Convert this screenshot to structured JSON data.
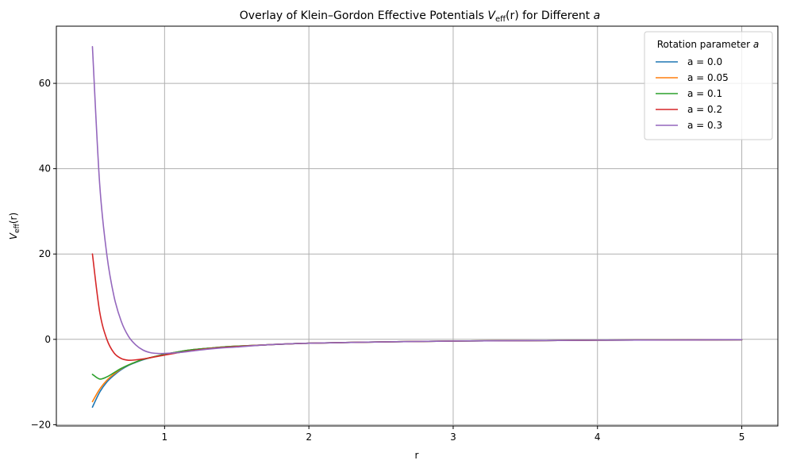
{
  "chart_data": {
    "type": "line",
    "title": "Overlay of Klein–Gordon Effective Potentials V_eff(r) for Different a",
    "title_parts": {
      "prefix": "Overlay of Klein–Gordon Effective Potentials ",
      "v": "V",
      "eff": "eff",
      "r_expr": "(r)",
      "middle": " for Different ",
      "a": "a"
    },
    "xlabel": "r",
    "ylabel": "V_eff(r)",
    "ylabel_parts": {
      "v": "V",
      "eff": "eff",
      "r_expr": "(r)"
    },
    "xlim": [
      0.25,
      5.25
    ],
    "ylim": [
      -20.3,
      73.4
    ],
    "xticks": [
      1,
      2,
      3,
      4,
      5
    ],
    "xtick_labels": [
      "1",
      "2",
      "3",
      "4",
      "5"
    ],
    "yticks": [
      -20,
      0,
      20,
      40,
      60
    ],
    "ytick_labels": [
      "−20",
      "0",
      "20",
      "40",
      "60"
    ],
    "grid": true,
    "legend_title": "Rotation parameter a",
    "legend_title_parts": {
      "text": "Rotation parameter ",
      "a": "a"
    },
    "legend_position": "top-right",
    "x": [
      0.5,
      0.55,
      0.6,
      0.65,
      0.7,
      0.75,
      0.8,
      0.85,
      0.9,
      0.95,
      1.0,
      1.1,
      1.2,
      1.3,
      1.4,
      1.5,
      1.7,
      2.0,
      2.5,
      3.0,
      3.5,
      4.0,
      4.5,
      5.0
    ],
    "series": [
      {
        "name": "a = 0.0",
        "color": "#1f77b4",
        "values": [
          -15.9,
          -12.4,
          -10.0,
          -8.4,
          -7.1,
          -6.1,
          -5.4,
          -4.8,
          -4.3,
          -3.9,
          -3.5,
          -2.9,
          -2.4,
          -2.1,
          -1.8,
          -1.6,
          -1.3,
          -0.9,
          -0.6,
          -0.4,
          -0.3,
          -0.2,
          -0.15,
          -0.1
        ]
      },
      {
        "name": "a = 0.05",
        "color": "#ff7f0e",
        "values": [
          -14.6,
          -11.7,
          -9.6,
          -8.1,
          -6.9,
          -6.0,
          -5.3,
          -4.7,
          -4.3,
          -3.9,
          -3.5,
          -2.9,
          -2.4,
          -2.1,
          -1.8,
          -1.6,
          -1.3,
          -0.9,
          -0.6,
          -0.4,
          -0.3,
          -0.2,
          -0.15,
          -0.1
        ]
      },
      {
        "name": "a = 0.1",
        "color": "#2ca02c",
        "values": [
          -8.2,
          -9.3,
          -8.8,
          -7.8,
          -6.8,
          -6.0,
          -5.3,
          -4.7,
          -4.3,
          -3.9,
          -3.5,
          -2.9,
          -2.4,
          -2.1,
          -1.8,
          -1.6,
          -1.3,
          -0.9,
          -0.6,
          -0.4,
          -0.3,
          -0.2,
          -0.15,
          -0.1
        ]
      },
      {
        "name": "a = 0.2",
        "color": "#d62728",
        "values": [
          20.0,
          6.5,
          0.0,
          -3.2,
          -4.5,
          -4.9,
          -4.8,
          -4.6,
          -4.3,
          -4.0,
          -3.7,
          -3.1,
          -2.6,
          -2.2,
          -1.9,
          -1.7,
          -1.3,
          -0.9,
          -0.6,
          -0.4,
          -0.3,
          -0.2,
          -0.15,
          -0.1
        ]
      },
      {
        "name": "a = 0.3",
        "color": "#9467bd",
        "values": [
          68.6,
          36.5,
          19.8,
          10.0,
          4.2,
          0.7,
          -1.3,
          -2.5,
          -3.1,
          -3.3,
          -3.3,
          -3.1,
          -2.7,
          -2.3,
          -2.0,
          -1.8,
          -1.3,
          -0.9,
          -0.6,
          -0.4,
          -0.3,
          -0.2,
          -0.15,
          -0.1
        ]
      }
    ]
  }
}
